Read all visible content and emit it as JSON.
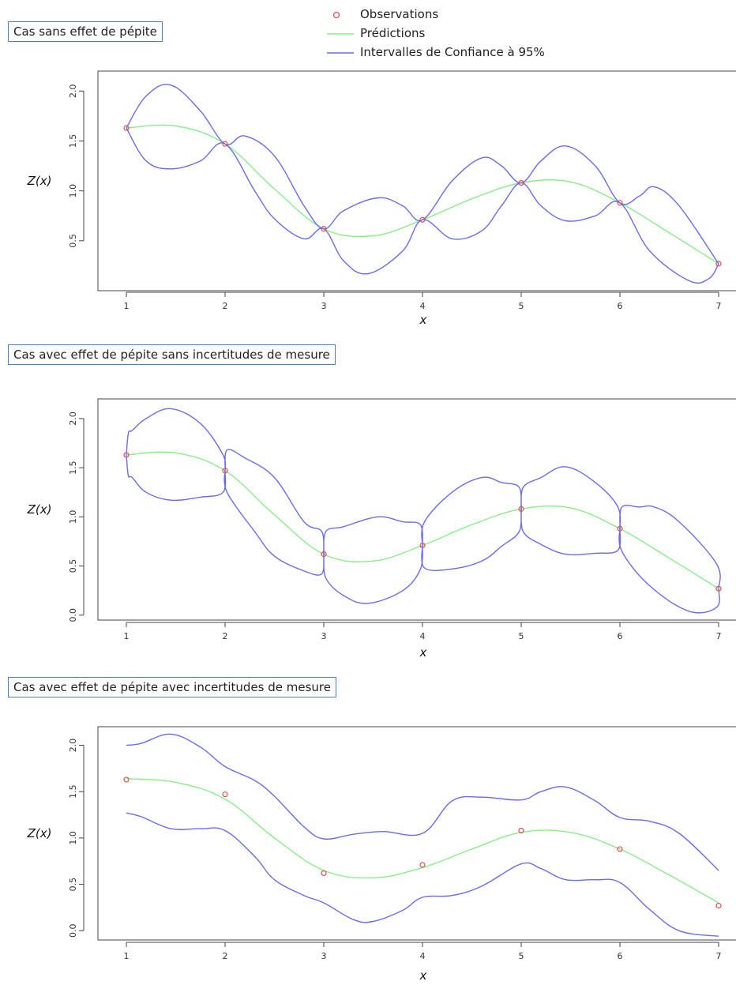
{
  "legend": {
    "observations": "Observations",
    "predictions": "Prédictions",
    "intervals": "Intervalles de Confiance à 95%"
  },
  "colors": {
    "observations": "#e05050",
    "predictions": "#88ee88",
    "intervals": "#6a6aee"
  },
  "chart_data": [
    {
      "type": "line",
      "title": "Cas sans effet de pépite",
      "xlabel": "x",
      "ylabel": "Z(x)",
      "xlim": [
        0.8,
        7.2
      ],
      "ylim": [
        0.0,
        2.2
      ],
      "xticks": [
        "1",
        "2",
        "3",
        "4",
        "5",
        "6",
        "7"
      ],
      "yticks": [
        "0.5",
        "1.0",
        "1.5",
        "2.0"
      ],
      "observations": {
        "x": [
          1,
          2,
          3,
          4,
          5,
          6,
          7
        ],
        "y": [
          1.63,
          1.47,
          0.62,
          0.71,
          1.08,
          0.88,
          0.27
        ]
      },
      "series": [
        {
          "name": "Prédictions",
          "x": [
            1,
            1.5,
            2,
            2.5,
            3,
            3.5,
            4,
            4.5,
            5,
            5.5,
            6,
            6.5,
            7
          ],
          "y": [
            1.63,
            1.65,
            1.47,
            1.02,
            0.62,
            0.55,
            0.71,
            0.92,
            1.08,
            1.09,
            0.88,
            0.58,
            0.27
          ]
        },
        {
          "name": "Intervalles de Confiance à 95%",
          "x": [
            1,
            1.2,
            1.45,
            1.75,
            2,
            2.2,
            2.5,
            2.8,
            3,
            3.2,
            3.55,
            3.8,
            4,
            4.3,
            4.6,
            4.8,
            5,
            5.2,
            5.45,
            5.75,
            6,
            6.2,
            6.35,
            6.6,
            7
          ],
          "y": [
            1.63,
            1.95,
            2.06,
            1.8,
            1.47,
            1.55,
            1.35,
            0.85,
            0.62,
            0.8,
            0.93,
            0.85,
            0.71,
            1.1,
            1.33,
            1.25,
            1.08,
            1.3,
            1.45,
            1.25,
            0.88,
            0.95,
            1.04,
            0.85,
            0.27
          ]
        },
        {
          "name": "Intervalles de Confiance à 95% (inférieur)",
          "x": [
            1,
            1.2,
            1.45,
            1.75,
            2,
            2.3,
            2.5,
            2.8,
            3,
            3.2,
            3.45,
            3.8,
            4,
            4.3,
            4.6,
            4.8,
            5,
            5.2,
            5.45,
            5.75,
            6,
            6.3,
            6.7,
            6.9,
            7
          ],
          "y": [
            1.63,
            1.3,
            1.22,
            1.3,
            1.47,
            1.0,
            0.72,
            0.52,
            0.62,
            0.3,
            0.17,
            0.4,
            0.71,
            0.52,
            0.6,
            0.85,
            1.08,
            0.85,
            0.7,
            0.75,
            0.88,
            0.4,
            0.1,
            0.12,
            0.27
          ]
        }
      ]
    },
    {
      "type": "line",
      "title": "Cas avec effet de pépite sans incertitudes de mesure",
      "xlabel": "x",
      "ylabel": "Z(x)",
      "xlim": [
        0.8,
        7.2
      ],
      "ylim": [
        -0.05,
        2.2
      ],
      "xticks": [
        "1",
        "2",
        "3",
        "4",
        "5",
        "6",
        "7"
      ],
      "yticks": [
        "0.0",
        "0.5",
        "1.0",
        "1.5",
        "2.0"
      ],
      "observations": {
        "x": [
          1,
          2,
          3,
          4,
          5,
          6,
          7
        ],
        "y": [
          1.63,
          1.47,
          0.62,
          0.71,
          1.08,
          0.88,
          0.27
        ]
      },
      "series": [
        {
          "name": "Prédictions",
          "x": [
            1,
            1.5,
            2,
            2.5,
            3,
            3.5,
            4,
            4.5,
            5,
            5.5,
            6,
            6.5,
            7
          ],
          "y": [
            1.63,
            1.65,
            1.47,
            1.02,
            0.62,
            0.55,
            0.71,
            0.92,
            1.08,
            1.09,
            0.88,
            0.58,
            0.27
          ]
        },
        {
          "name": "Intervalles de Confiance à 95%",
          "x": [
            1,
            1.02,
            1.06,
            1.2,
            1.45,
            1.75,
            1.98,
            2.0,
            2.02,
            2.2,
            2.5,
            2.8,
            2.98,
            3.0,
            3.02,
            3.2,
            3.55,
            3.8,
            3.98,
            4.0,
            4.02,
            4.3,
            4.6,
            4.8,
            4.98,
            5.0,
            5.02,
            5.2,
            5.45,
            5.75,
            5.98,
            6.0,
            6.02,
            6.2,
            6.35,
            6.6,
            6.98,
            7.0
          ],
          "y": [
            1.63,
            1.85,
            1.88,
            2.0,
            2.1,
            1.95,
            1.63,
            1.47,
            1.68,
            1.6,
            1.4,
            0.95,
            0.85,
            0.62,
            0.85,
            0.9,
            1.0,
            0.95,
            0.92,
            0.71,
            0.95,
            1.25,
            1.4,
            1.35,
            1.3,
            1.08,
            1.3,
            1.4,
            1.51,
            1.35,
            1.1,
            0.88,
            1.1,
            1.1,
            1.1,
            0.95,
            0.52,
            0.27
          ]
        },
        {
          "name": "Intervalles de Confiance à 95% (inférieur)",
          "x": [
            1,
            1.02,
            1.06,
            1.2,
            1.45,
            1.75,
            1.98,
            2.0,
            2.02,
            2.3,
            2.5,
            2.8,
            2.98,
            3.0,
            3.02,
            3.2,
            3.45,
            3.8,
            3.98,
            4.0,
            4.02,
            4.3,
            4.6,
            4.8,
            4.98,
            5.0,
            5.02,
            5.2,
            5.45,
            5.75,
            5.98,
            6.0,
            6.02,
            6.3,
            6.7,
            6.98,
            7.0
          ],
          "y": [
            1.63,
            1.42,
            1.4,
            1.25,
            1.17,
            1.2,
            1.25,
            1.47,
            1.25,
            0.85,
            0.6,
            0.45,
            0.42,
            0.62,
            0.38,
            0.2,
            0.12,
            0.25,
            0.47,
            0.71,
            0.48,
            0.47,
            0.55,
            0.7,
            0.85,
            1.08,
            0.85,
            0.72,
            0.62,
            0.63,
            0.66,
            0.88,
            0.65,
            0.3,
            0.04,
            0.08,
            0.27
          ]
        }
      ]
    },
    {
      "type": "line",
      "title": "Cas avec effet de pépite avec incertitudes de mesure",
      "xlabel": "x",
      "ylabel": "Z(x)",
      "xlim": [
        0.8,
        7.2
      ],
      "ylim": [
        -0.1,
        2.2
      ],
      "xticks": [
        "1",
        "2",
        "3",
        "4",
        "5",
        "6",
        "7"
      ],
      "yticks": [
        "0.0",
        "0.5",
        "1.0",
        "1.5",
        "2.0"
      ],
      "observations": {
        "x": [
          1,
          2,
          3,
          4,
          5,
          6,
          7
        ],
        "y": [
          1.63,
          1.47,
          0.62,
          0.71,
          1.08,
          0.88,
          0.27
        ]
      },
      "series": [
        {
          "name": "Prédictions",
          "x": [
            1,
            1.5,
            2,
            2.5,
            3,
            3.5,
            4,
            4.5,
            5,
            5.5,
            6,
            6.5,
            7
          ],
          "y": [
            1.64,
            1.6,
            1.42,
            1.0,
            0.65,
            0.57,
            0.68,
            0.88,
            1.06,
            1.06,
            0.88,
            0.6,
            0.3
          ]
        },
        {
          "name": "Intervalles de Confiance à 95%",
          "x": [
            1,
            1.15,
            1.45,
            1.75,
            2,
            2.3,
            2.5,
            2.8,
            3,
            3.3,
            3.6,
            4,
            4.3,
            4.6,
            5,
            5.2,
            5.45,
            5.75,
            6,
            6.3,
            6.6,
            7
          ],
          "y": [
            2.0,
            2.02,
            2.12,
            1.98,
            1.77,
            1.62,
            1.45,
            1.12,
            0.99,
            1.04,
            1.07,
            1.05,
            1.4,
            1.44,
            1.41,
            1.5,
            1.55,
            1.4,
            1.22,
            1.18,
            1.05,
            0.65
          ]
        },
        {
          "name": "Intervalles de Confiance à 95% (inférieur)",
          "x": [
            1,
            1.15,
            1.45,
            1.75,
            2,
            2.3,
            2.5,
            2.8,
            3,
            3.3,
            3.5,
            3.8,
            4,
            4.3,
            4.6,
            5,
            5.2,
            5.45,
            5.75,
            6,
            6.3,
            6.6,
            7
          ],
          "y": [
            1.27,
            1.23,
            1.1,
            1.1,
            1.08,
            0.8,
            0.55,
            0.38,
            0.3,
            0.12,
            0.1,
            0.22,
            0.36,
            0.38,
            0.48,
            0.72,
            0.67,
            0.55,
            0.55,
            0.52,
            0.23,
            0.0,
            -0.06
          ]
        }
      ]
    }
  ]
}
